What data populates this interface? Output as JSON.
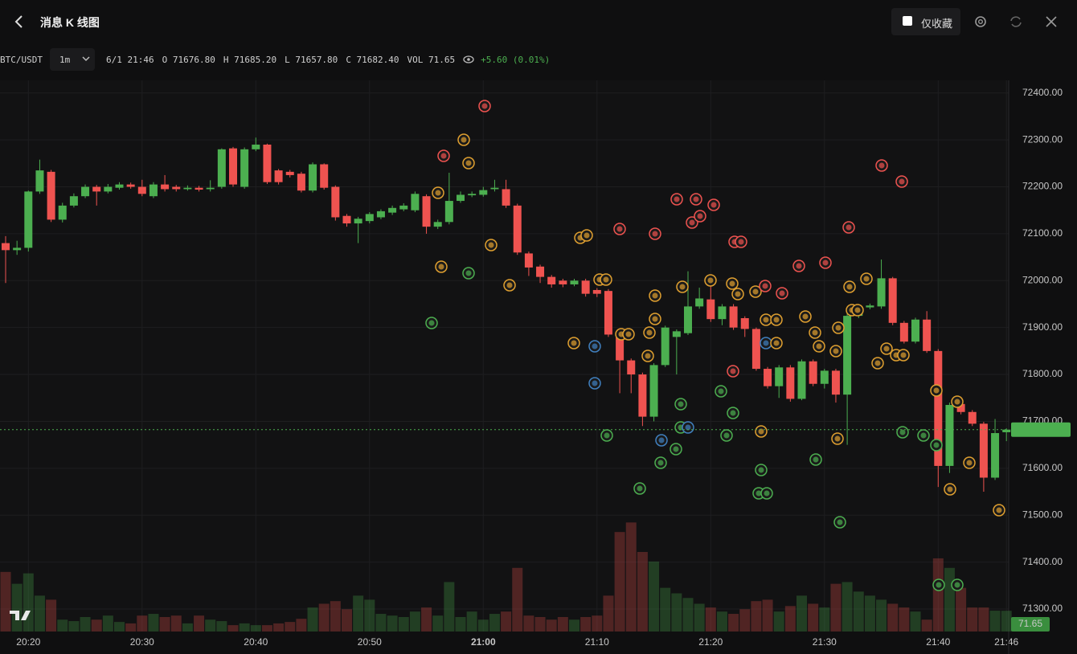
{
  "header": {
    "title": "消息 K 线图",
    "favorite_label": "仅收藏"
  },
  "chart_data": {
    "type": "candlestick",
    "symbol": "BTC/USDT",
    "interval": "1m",
    "info": [
      "6/1 21:46",
      "O 71676.80",
      "H 71685.20",
      "L 71657.80",
      "C 71682.40",
      "VOL 71.65"
    ],
    "change": "+5.60 (0.01%)",
    "up_color": "#4caf50",
    "down_color": "#ef5350",
    "grid": true,
    "categories": [
      null,
      null,
      "20:20",
      null,
      null,
      null,
      null,
      null,
      null,
      null,
      null,
      null,
      "20:30",
      null,
      null,
      null,
      null,
      null,
      null,
      null,
      null,
      null,
      "20:40",
      null,
      null,
      null,
      null,
      null,
      null,
      null,
      null,
      null,
      "20:50",
      null,
      null,
      null,
      null,
      null,
      null,
      null,
      null,
      null,
      "21:00",
      null,
      null,
      null,
      null,
      null,
      null,
      null,
      null,
      null,
      "21:10",
      null,
      null,
      null,
      null,
      null,
      null,
      null,
      null,
      null,
      "21:20",
      null,
      null,
      null,
      null,
      null,
      null,
      null,
      null,
      null,
      "21:30",
      null,
      null,
      null,
      null,
      null,
      null,
      null,
      null,
      null,
      "21:40",
      null,
      null,
      null,
      null,
      null,
      "21:46"
    ],
    "open": [
      72080,
      72065,
      72070,
      72190,
      72232,
      72130,
      72160,
      72180,
      72200,
      72190,
      72198,
      72205,
      72200,
      72180,
      72205,
      72200,
      72195,
      72198,
      72195,
      72200,
      72282,
      72200,
      72280,
      72290,
      72235,
      72232,
      72228,
      72192,
      72248,
      72200,
      72138,
      72122,
      72127,
      72135,
      72145,
      72152,
      72150,
      72180,
      72115,
      72125,
      72170,
      72182,
      72183,
      72195,
      72195,
      72160,
      72058,
      72030,
      72008,
      72000,
      71992,
      72000,
      71980,
      71978,
      71885,
      71830,
      71800,
      71710,
      71820,
      71880,
      71888,
      71945,
      71960,
      71918,
      71945,
      71920,
      71897,
      71812,
      71775,
      71815,
      71748,
      71828,
      71780,
      71808,
      71757,
      71925,
      71943,
      71945,
      72005,
      71910,
      71870,
      71917,
      71850,
      71605,
      71737,
      71720,
      71695,
      71580,
      71676.8
    ],
    "high": [
      72095,
      72085,
      72192,
      72258,
      72236,
      72166,
      72186,
      72205,
      72204,
      72206,
      72210,
      72209,
      72215,
      72210,
      72225,
      72204,
      72203,
      72202,
      72214,
      72282,
      72285,
      72284,
      72305,
      72292,
      72238,
      72236,
      72232,
      72252,
      72250,
      72203,
      72142,
      72136,
      72146,
      72152,
      72160,
      72165,
      72190,
      72184,
      72130,
      72230,
      72190,
      72190,
      72200,
      72215,
      72215,
      72164,
      72062,
      72034,
      72012,
      72004,
      72004,
      72004,
      71984,
      71982,
      71890,
      71834,
      71804,
      71824,
      71904,
      71896,
      72020,
      71985,
      71990,
      71950,
      71950,
      71924,
      71900,
      71816,
      71820,
      71820,
      71832,
      71832,
      71812,
      71812,
      71930,
      71950,
      71951,
      72045,
      72008,
      71914,
      71921,
      71935,
      71854,
      71740,
      71741,
      71724,
      71699,
      71705,
      71685.2
    ],
    "low": [
      71995,
      72055,
      72062,
      72185,
      72125,
      72124,
      72156,
      72176,
      72160,
      72186,
      72194,
      72196,
      72180,
      72176,
      72190,
      72190,
      72192,
      72190,
      72190,
      72196,
      72200,
      72196,
      72276,
      72206,
      72205,
      72220,
      72188,
      72188,
      72194,
      72128,
      72115,
      72080,
      72122,
      72131,
      72140,
      72148,
      72146,
      72100,
      72110,
      72120,
      72166,
      72178,
      72179,
      72190,
      72155,
      72055,
      72010,
      71995,
      71985,
      71986,
      71988,
      71966,
      71965,
      71880,
      71760,
      71760,
      71690,
      71700,
      71816,
      71800,
      71884,
      71940,
      71912,
      71905,
      71895,
      71880,
      71808,
      71770,
      71750,
      71742,
      71745,
      71775,
      71770,
      71740,
      71650,
      71920,
      71939,
      71940,
      71905,
      71866,
      71866,
      71846,
      71560,
      71590,
      71715,
      71690,
      71550,
      71575,
      71657.8
    ],
    "close": [
      72065,
      72070,
      72190,
      72235,
      72130,
      72160,
      72180,
      72200,
      72190,
      72200,
      72205,
      72200,
      72185,
      72205,
      72195,
      72195,
      72198,
      72194,
      72198,
      72280,
      72205,
      72280,
      72290,
      72210,
      72210,
      72225,
      72192,
      72248,
      72198,
      72135,
      72122,
      72132,
      72142,
      72148,
      72155,
      72160,
      72185,
      72115,
      72125,
      72170,
      72183,
      72185,
      72193,
      72198,
      72160,
      72060,
      72028,
      72008,
      71992,
      71992,
      72000,
      71972,
      71972,
      71885,
      71830,
      71800,
      71710,
      71820,
      71900,
      71892,
      71945,
      71962,
      71918,
      71945,
      71900,
      71897,
      71812,
      71775,
      71815,
      71748,
      71828,
      71780,
      71808,
      71757,
      71925,
      71945,
      71947,
      72005,
      71910,
      71870,
      71917,
      71850,
      71605,
      71735,
      71720,
      71695,
      71580,
      71675,
      71682.4
    ],
    "volume": [
      206,
      165,
      201,
      124,
      110,
      41,
      36,
      50,
      41,
      55,
      33,
      28,
      55,
      61,
      50,
      55,
      28,
      55,
      41,
      36,
      22,
      28,
      22,
      22,
      28,
      33,
      44,
      83,
      96,
      105,
      77,
      124,
      110,
      61,
      55,
      50,
      69,
      83,
      55,
      171,
      50,
      69,
      41,
      61,
      69,
      220,
      55,
      50,
      41,
      50,
      41,
      50,
      55,
      124,
      344,
      377,
      275,
      242,
      151,
      132,
      116,
      96,
      83,
      69,
      61,
      77,
      105,
      110,
      69,
      88,
      124,
      96,
      83,
      165,
      171,
      138,
      124,
      110,
      96,
      83,
      69,
      41,
      253,
      220,
      151,
      83,
      83,
      72,
      71.65
    ],
    "ylim": [
      71252,
      72427
    ],
    "yticks": [
      {
        "value": 72400,
        "label": "72400.00"
      },
      {
        "value": 72300,
        "label": "72300.00"
      },
      {
        "value": 72200,
        "label": "72200.00"
      },
      {
        "value": 72100,
        "label": "72100.00"
      },
      {
        "value": 72000,
        "label": "72000.00"
      },
      {
        "value": 71900,
        "label": "71900.00"
      },
      {
        "value": 71800,
        "label": "71800.00"
      },
      {
        "value": 71700,
        "label": "71700.00"
      },
      {
        "value": 71600,
        "label": "71600.00"
      },
      {
        "value": 71500,
        "label": "71500.00"
      },
      {
        "value": 71400,
        "label": "71400.00"
      },
      {
        "value": 71300,
        "label": "71300.00"
      }
    ]
  }
}
